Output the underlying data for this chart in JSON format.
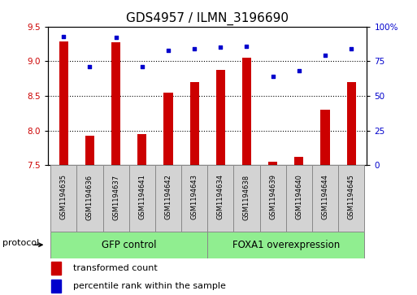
{
  "title": "GDS4957 / ILMN_3196690",
  "samples": [
    "GSM1194635",
    "GSM1194636",
    "GSM1194637",
    "GSM1194641",
    "GSM1194642",
    "GSM1194643",
    "GSM1194634",
    "GSM1194638",
    "GSM1194639",
    "GSM1194640",
    "GSM1194644",
    "GSM1194645"
  ],
  "transformed_count": [
    9.28,
    7.92,
    9.27,
    7.95,
    8.55,
    8.7,
    8.88,
    9.05,
    7.55,
    7.62,
    8.3,
    8.7
  ],
  "percentile_rank": [
    93,
    71,
    92,
    71,
    83,
    84,
    85,
    86,
    64,
    68,
    79,
    84
  ],
  "ylim_left": [
    7.5,
    9.5
  ],
  "ylim_right": [
    0,
    100
  ],
  "yticks_left": [
    7.5,
    8.0,
    8.5,
    9.0,
    9.5
  ],
  "yticks_right": [
    0,
    25,
    50,
    75,
    100
  ],
  "ytick_labels_right": [
    "0",
    "25",
    "50",
    "75",
    "100%"
  ],
  "bar_color": "#cc0000",
  "dot_color": "#0000cc",
  "group1_label": "GFP control",
  "group2_label": "FOXA1 overexpression",
  "group1_color": "#90ee90",
  "group2_color": "#90ee90",
  "sample_box_color": "#d3d3d3",
  "protocol_label": "protocol",
  "legend_bar_label": "transformed count",
  "legend_dot_label": "percentile rank within the sample",
  "bar_color_label": "#cc0000",
  "dot_color_label": "#0000cc",
  "bar_bottom": 7.5,
  "title_fontsize": 11,
  "tick_fontsize": 7.5,
  "sample_fontsize": 6.0,
  "group_fontsize": 8.5,
  "legend_fontsize": 8,
  "protocol_fontsize": 8
}
